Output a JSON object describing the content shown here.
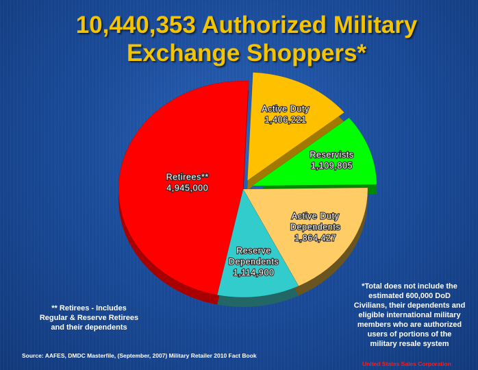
{
  "title": {
    "line1": "10,440,353 Authorized Military",
    "line2": "Exchange Shoppers*"
  },
  "chart_data": {
    "type": "pie",
    "title": "10,440,353 Authorized Military Exchange Shoppers*",
    "total": 10440353,
    "slices": [
      {
        "label": [
          "Retirees**"
        ],
        "value": 4945000,
        "value_label": "4,945,000",
        "color": "#ff0000",
        "side": "#a80000",
        "exploded": false
      },
      {
        "label": [
          "Active Duty"
        ],
        "value": 1406221,
        "value_label": "1,406,221",
        "color": "#ffc000",
        "side": "#a07a00",
        "exploded": true
      },
      {
        "label": [
          "Reservists"
        ],
        "value": 1109805,
        "value_label": "1,109,805",
        "color": "#00ff00",
        "side": "#008800",
        "exploded": true
      },
      {
        "label": [
          "Active Duty",
          "Dependents"
        ],
        "value": 1864427,
        "value_label": "1,864,427",
        "color": "#ffcc66",
        "side": "#6a5520",
        "exploded": false
      },
      {
        "label": [
          "Reserve",
          "Dependents"
        ],
        "value": 1114900,
        "value_label": "1,114,900",
        "color": "#33cccc",
        "side": "#226666",
        "exploded": false
      }
    ]
  },
  "notes": {
    "retirees": [
      "** Retirees - Includes",
      "Regular & Reserve Retirees",
      "and their dependents"
    ],
    "total": [
      "*Total does not include the",
      "estimated 600,000 DoD",
      "Civilians, their dependents and",
      "eligible international military",
      "members who are  authorized",
      "users of portions of the",
      "military resale system"
    ]
  },
  "source": "Source: AAFES, DMDC Masterfile, (September, 2007) Military Retailer 2010 Fact Book",
  "credit": "United States Sales Corporation"
}
